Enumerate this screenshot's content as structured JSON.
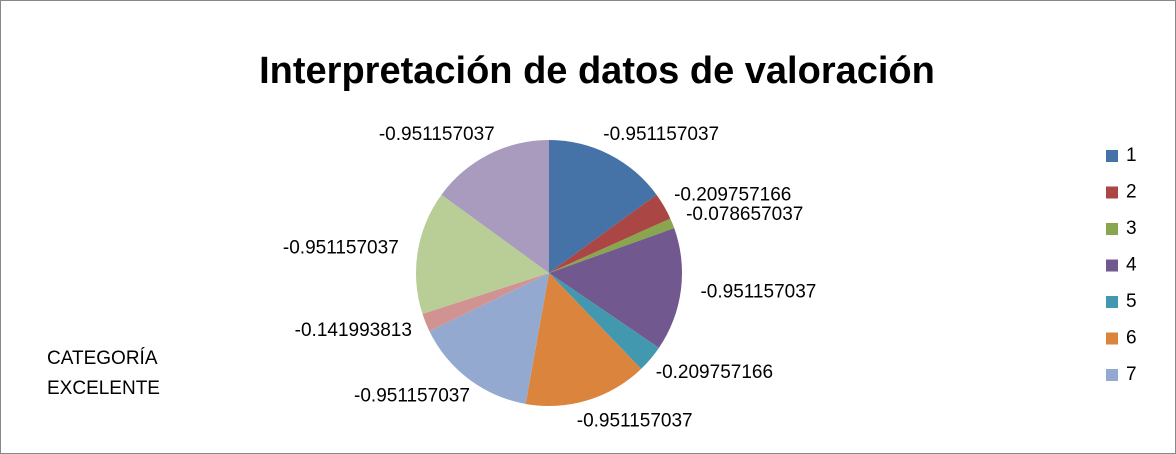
{
  "chart_data": {
    "type": "pie",
    "title": "Interpretación de datos de valoración",
    "annotation": "CATEGORÍA EXCELENTE",
    "categories": [
      "1",
      "2",
      "3",
      "4",
      "5",
      "6",
      "7",
      null,
      null,
      null
    ],
    "values": [
      -0.951157037,
      -0.209757166,
      -0.078657037,
      -0.951157037,
      -0.209757166,
      -0.951157037,
      -0.951157037,
      -0.141993813,
      -0.951157037,
      -0.951157037
    ],
    "colors": [
      "#4572a7",
      "#aa4643",
      "#89a54e",
      "#71588f",
      "#4198af",
      "#db843d",
      "#93a9cf",
      "#d19392",
      "#b9cd96",
      "#a99bbd"
    ],
    "legend": "right"
  }
}
